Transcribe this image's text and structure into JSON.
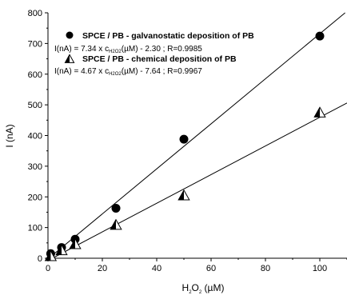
{
  "chart_data": {
    "type": "scatter",
    "xlabel": {
      "prefix": "H",
      "sub1": "2",
      "mid": "O",
      "sub2": "2",
      "suffix": " (µM)"
    },
    "ylabel": "I (nA)",
    "xlim": [
      0,
      110
    ],
    "ylim": [
      0,
      800
    ],
    "x_ticks": [
      0,
      20,
      40,
      60,
      80,
      100
    ],
    "y_ticks": [
      0,
      100,
      200,
      300,
      400,
      500,
      600,
      700,
      800
    ],
    "grid": false,
    "legend_position": "top-left",
    "series": [
      {
        "name": "SPCE / PB - galvanostatic deposition of PB",
        "marker": "circle",
        "x": [
          1,
          5,
          10,
          25,
          50,
          100
        ],
        "y": [
          15,
          35,
          62,
          163,
          388,
          724
        ],
        "equation": {
          "before": "I(nA) = 7.34 x c",
          "sub": "H2O2",
          "after": "(µM) - 2.30 ; R=0.9985"
        },
        "fit": {
          "slope": 7.34,
          "intercept": -2.3
        }
      },
      {
        "name": "SPCE / PB - chemical deposition of PB",
        "marker": "triangle",
        "x": [
          1,
          5,
          10,
          25,
          50,
          100
        ],
        "y": [
          6,
          25,
          45,
          108,
          204,
          474
        ],
        "equation": {
          "before": "I(nA) = 4.67 x c",
          "sub": "H2O2",
          "after": "(µM) - 7.64 ; R=0.9967"
        },
        "fit": {
          "slope": 4.67,
          "intercept": -7.64
        }
      }
    ]
  }
}
